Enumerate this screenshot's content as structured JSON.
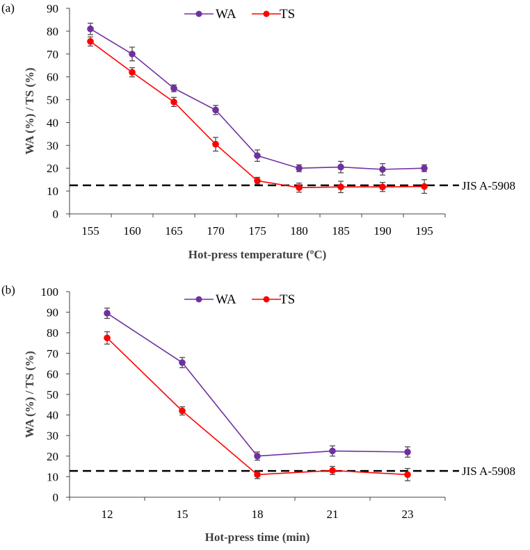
{
  "chart_data": [
    {
      "type": "line",
      "panel_label": "(a)",
      "categories": [
        "155",
        "160",
        "165",
        "170",
        "175",
        "180",
        "185",
        "190",
        "195"
      ],
      "xlabel": "Hot-press temperature (ºC)",
      "ylabel": "WA (%) / TS (%)",
      "ylim": [
        0,
        90
      ],
      "ystep": 10,
      "series": [
        {
          "name": "WA",
          "color": "#7030a0",
          "values": [
            81,
            70,
            55,
            45.5,
            25.5,
            20,
            20.5,
            19.5,
            20
          ],
          "errors": [
            2.5,
            3,
            1.5,
            2,
            2.5,
            1.5,
            2.5,
            2.5,
            1.5
          ]
        },
        {
          "name": "TS",
          "color": "#ff0000",
          "values": [
            75.5,
            62,
            49,
            30.5,
            14.5,
            11.5,
            11.8,
            11.8,
            12
          ],
          "errors": [
            2,
            2,
            2,
            3,
            1.5,
            2,
            2.5,
            2,
            3
          ]
        }
      ],
      "reference_line": {
        "value": 12.5,
        "label": "JIS A-5908"
      },
      "legend_position": "top-center",
      "grid": false
    },
    {
      "type": "line",
      "panel_label": "(b)",
      "categories": [
        "12",
        "15",
        "18",
        "21",
        "23"
      ],
      "xlabel": "Hot-press time (min)",
      "ylabel": "WA (%) / TS (%)",
      "ylim": [
        0,
        100
      ],
      "ystep": 10,
      "series": [
        {
          "name": "WA",
          "color": "#7030a0",
          "values": [
            89.5,
            65.5,
            20,
            22.5,
            22
          ],
          "errors": [
            2.5,
            2.5,
            2,
            2.5,
            2.5
          ]
        },
        {
          "name": "TS",
          "color": "#ff0000",
          "values": [
            77.5,
            42,
            11,
            13,
            11
          ],
          "errors": [
            3,
            2,
            2,
            2,
            3
          ]
        }
      ],
      "reference_line": {
        "value": 12.8,
        "label": "JIS A-5908"
      },
      "legend_position": "top-center",
      "grid": false
    }
  ]
}
